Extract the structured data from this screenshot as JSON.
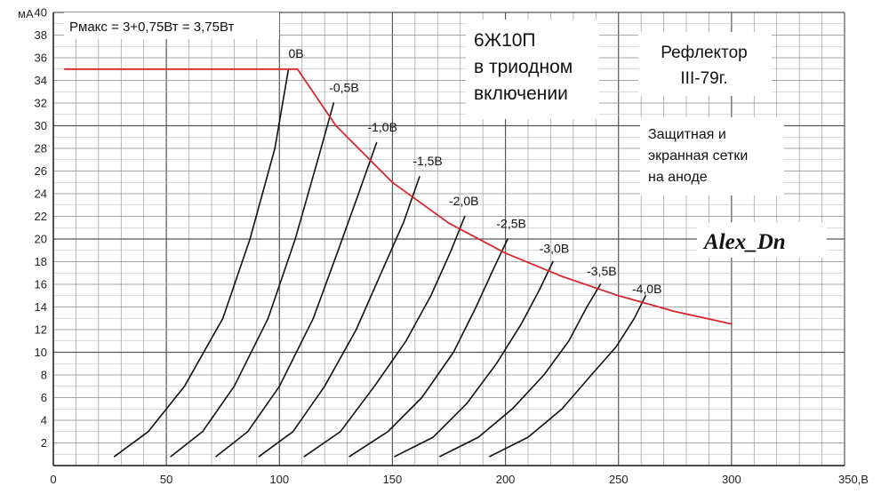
{
  "chart_data": {
    "type": "line",
    "ylabel": "мА",
    "xlabel": "В",
    "xlim": [
      0,
      350
    ],
    "ylim": [
      0,
      40
    ],
    "x_ticks": [
      0,
      50,
      100,
      150,
      200,
      250,
      300,
      350
    ],
    "x_tick_labels": [
      "0",
      "50",
      "100",
      "150",
      "200",
      "250",
      "300",
      "350,В"
    ],
    "y_ticks": [
      2,
      4,
      6,
      8,
      10,
      12,
      14,
      16,
      18,
      20,
      22,
      24,
      26,
      28,
      30,
      32,
      34,
      36,
      38,
      40
    ],
    "grid": true,
    "series": [
      {
        "name": "0В",
        "color": "#111111",
        "x": [
          27,
          42,
          58,
          75,
          87,
          98,
          104
        ],
        "y": [
          0.8,
          3,
          7,
          13,
          20,
          28,
          35
        ]
      },
      {
        "name": "-0,5В",
        "color": "#111111",
        "x": [
          52,
          66,
          80,
          95,
          107,
          117,
          124
        ],
        "y": [
          0.8,
          3,
          7,
          13,
          20,
          27,
          32
        ]
      },
      {
        "name": "-1,0В",
        "color": "#111111",
        "x": [
          72,
          86,
          100,
          115,
          126,
          135,
          143
        ],
        "y": [
          0.8,
          3,
          7,
          13,
          19,
          24,
          28.5
        ]
      },
      {
        "name": "-1,5В",
        "color": "#111111",
        "x": [
          91,
          106,
          120,
          134,
          145,
          155,
          162
        ],
        "y": [
          0.8,
          3,
          7,
          12,
          17,
          21.5,
          25.5
        ]
      },
      {
        "name": "-2,0В",
        "color": "#111111",
        "x": [
          111,
          127,
          142,
          156,
          167,
          176,
          182
        ],
        "y": [
          0.8,
          3,
          7,
          11,
          15,
          19,
          22
        ]
      },
      {
        "name": "-2,5В",
        "color": "#111111",
        "x": [
          131,
          148,
          163,
          177,
          187,
          195,
          201
        ],
        "y": [
          0.8,
          3,
          6,
          10,
          14,
          17.5,
          20
        ]
      },
      {
        "name": "-3,0В",
        "color": "#111111",
        "x": [
          151,
          168,
          183,
          196,
          207,
          215,
          221
        ],
        "y": [
          0.8,
          2.5,
          5.5,
          9,
          12.5,
          15.5,
          18
        ]
      },
      {
        "name": "-3,5В",
        "color": "#111111",
        "x": [
          171,
          188,
          203,
          217,
          228,
          236,
          242
        ],
        "y": [
          0.8,
          2.5,
          5,
          8,
          11,
          14,
          16
        ]
      },
      {
        "name": "-4,0В",
        "color": "#111111",
        "x": [
          193,
          210,
          225,
          238,
          249,
          257,
          262
        ],
        "y": [
          0.8,
          2.5,
          5,
          8,
          10.5,
          13,
          15
        ]
      },
      {
        "name": "",
        "color": "#d9262b",
        "x": [
          5,
          108,
          125,
          150,
          175,
          200,
          225,
          250,
          275,
          300
        ],
        "y": [
          35,
          35,
          30,
          25,
          21.4,
          18.75,
          16.7,
          15,
          13.6,
          12.5
        ]
      }
    ],
    "curve_labels": [
      {
        "text": "0В",
        "x": 104,
        "y": 36
      },
      {
        "text": "-0,5В",
        "x": 122,
        "y": 33
      },
      {
        "text": "-1,0В",
        "x": 139,
        "y": 29.5
      },
      {
        "text": "-1,5В",
        "x": 159,
        "y": 26.5
      },
      {
        "text": "-2,0В",
        "x": 175,
        "y": 23
      },
      {
        "text": "-2,5В",
        "x": 196,
        "y": 21
      },
      {
        "text": "-3,0В",
        "x": 215,
        "y": 18.8
      },
      {
        "text": "-3,5В",
        "x": 236,
        "y": 16.8
      },
      {
        "text": "-4,0В",
        "x": 256,
        "y": 15.2
      }
    ],
    "annotations": {
      "pmax": "Pмакс = 3+0,75Вт = 3,75Вт",
      "title_lines": [
        "6Ж10П",
        "в триодном",
        "включении"
      ],
      "reflector_lines": [
        "Рефлектор",
        "III-79г."
      ],
      "note_lines": [
        "Защитная и",
        "экранная сетки",
        "на аноде"
      ],
      "signature": "Alex_Dn"
    }
  }
}
